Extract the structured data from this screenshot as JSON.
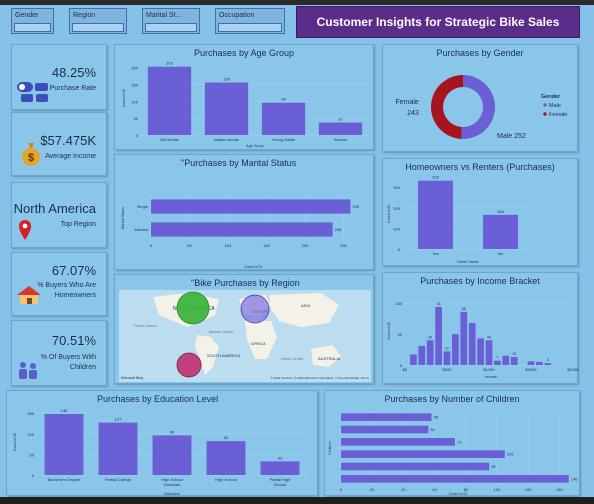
{
  "slicers": [
    "Gender",
    "Region",
    "Marital St...",
    "Occupation"
  ],
  "page_title": "Customer Insights for Strategic Bike Sales Growth",
  "kpis": {
    "purchase_rate": {
      "value": "48.25%",
      "label": "Purchase Rate"
    },
    "avg_income": {
      "value": "$57.475K",
      "label": "Average Income"
    },
    "top_region": {
      "value": "North America",
      "label": "Top Region"
    },
    "homeowners": {
      "value": "67.07%",
      "label": "% Buyers Who Are Homeowners"
    },
    "with_children": {
      "value": "70.51%",
      "label": "% Of Buyers With Children"
    }
  },
  "colors": {
    "bar": "#6b5fd6",
    "male": "#6b5fd6",
    "female": "#a8141e",
    "green": "#3cb43c",
    "violet": "#7f6fe0",
    "magenta": "#c0306f"
  },
  "chart_data": [
    {
      "id": "age",
      "type": "bar",
      "title": "Purchases by Age Group",
      "categories": [
        "Mid Adults",
        "Mature Adults",
        "Young Adults",
        "Seniors"
      ],
      "values": [
        203,
        156,
        96,
        37
      ],
      "xlabel": "Age Group",
      "ylabel": "Count of ID",
      "yticks": [
        0,
        50,
        100,
        150,
        200
      ],
      "ylim": [
        0,
        220
      ]
    },
    {
      "id": "gender",
      "type": "pie",
      "title": "Purchases by Gender",
      "legend_title": "Gender",
      "categories": [
        "Male",
        "Female"
      ],
      "values": [
        252,
        243
      ],
      "slice_labels": [
        "Male 252",
        "Female 243"
      ],
      "legend": "right"
    },
    {
      "id": "marital",
      "type": "bar",
      "orientation": "horizontal",
      "title": "\"Purchases by Marital Status",
      "categories": [
        "Single",
        "Married"
      ],
      "values": [
        259,
        236
      ],
      "xlabel": "Count of ID",
      "ylabel": "Marital Status",
      "xticks": [
        0,
        50,
        100,
        150,
        200,
        250
      ],
      "xlim": [
        0,
        265
      ]
    },
    {
      "id": "homeowner",
      "type": "bar",
      "title": "Homeowners vs Renters (Purchases)",
      "categories": [
        "Yes",
        "No"
      ],
      "values": [
        332,
        166
      ],
      "xlabel": "Home Owner",
      "ylabel": "Count of ID",
      "yticks": [
        0,
        100,
        200,
        300
      ],
      "ylim": [
        0,
        340
      ]
    },
    {
      "id": "region",
      "type": "map",
      "title": "\"Bike Purchases by Region",
      "map_labels": [
        "NORTH AMERICA",
        "EUROPE",
        "ASIA",
        "AFRICA",
        "SOUTH AMERICA",
        "AUSTRALIA",
        "Pacific Ocean",
        "Atlantic Ocean",
        "Indian Ocean"
      ],
      "attribution": "© 2024 TomTom, © 2024 Microsoft Corporation, © OpenStreetMap, Terms",
      "brand": "Microsoft Bing"
    },
    {
      "id": "income",
      "type": "bar",
      "title": "Purchases by Income Bracket",
      "x": [
        10000,
        20000,
        30000,
        40000,
        50000,
        60000,
        70000,
        80000,
        90000,
        100000,
        110000,
        120000,
        130000,
        150000,
        160000,
        170000
      ],
      "values": [
        17,
        31,
        40,
        94,
        22,
        50,
        86,
        68,
        43,
        40,
        7,
        15,
        13,
        6,
        5,
        3
      ],
      "value_labels": {
        "94": "94",
        "86": "86",
        "40": "40",
        "22": "22",
        "13": "13",
        "7": "7",
        "3": "3"
      },
      "xticks_labels": [
        "$0",
        "$50K",
        "$100K",
        "$150K",
        "$200K"
      ],
      "xlabel": "Income",
      "ylabel": "Count of ID",
      "yticks": [
        0,
        50,
        100
      ],
      "ylim": [
        0,
        110
      ]
    },
    {
      "id": "education",
      "type": "bar",
      "title": "Purchases by Education Level",
      "categories": [
        "Bachelor's Degree",
        "Partial College",
        "High School Graduate",
        "High School",
        "Partial High School"
      ],
      "values": [
        148,
        127,
        96,
        82,
        33
      ],
      "xlabel": "Education",
      "ylabel": "Count of ID",
      "yticks": [
        0,
        50,
        100,
        150
      ],
      "ylim": [
        0,
        160
      ]
    },
    {
      "id": "children",
      "type": "bar",
      "orientation": "horizontal",
      "title": "Purchases by Number of Children",
      "categories": [
        "5",
        "4",
        "3",
        "2",
        "1",
        "0"
      ],
      "values": [
        58,
        56,
        73,
        105,
        95,
        146
      ],
      "xlabel": "Count of ID",
      "ylabel": "Children",
      "xticks": [
        0,
        20,
        40,
        60,
        80,
        100,
        120,
        140
      ],
      "xlim": [
        0,
        150
      ]
    }
  ]
}
